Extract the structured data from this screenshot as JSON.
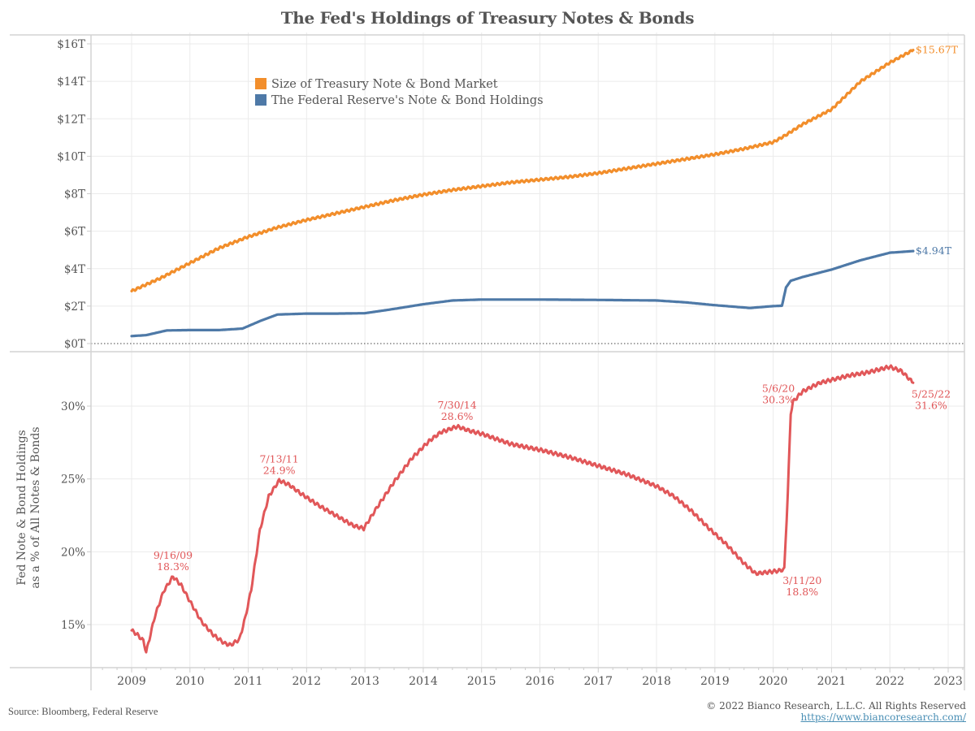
{
  "title": "The Fed's Holdings of Treasury Notes & Bonds",
  "footer": {
    "source": "Source: Bloomberg, Federal Reserve",
    "copyright": "© 2022 Bianco Research, L.L.C. All Rights Reserved",
    "url": "https://www.biancoresearch.com/"
  },
  "colors": {
    "market": "#f28e2b",
    "fed": "#4e79a7",
    "share": "#e15759",
    "text": "#555555",
    "grid": "#ebebeb"
  },
  "chart_data": [
    {
      "type": "line",
      "title": "Treasury Note & Bond Market vs Fed Holdings",
      "xlabel": "",
      "ylabel": "",
      "x_range": [
        2008.35,
        2023.3
      ],
      "ylim": [
        -0.4,
        17
      ],
      "y_ticks": [
        0,
        2,
        4,
        6,
        8,
        10,
        12,
        14,
        16
      ],
      "y_tick_labels": [
        "$0T",
        "$2T",
        "$4T",
        "$6T",
        "$8T",
        "$10T",
        "$12T",
        "$14T",
        "$16T"
      ],
      "grid": true,
      "legend_position": "top-left",
      "legend": [
        "Size of Treasury Note & Bond Market",
        "The Federal Reserve's Note & Bond Holdings"
      ],
      "series": [
        {
          "name": "Size of Treasury Note & Bond Market",
          "color_key": "market",
          "end_label": "$15.67T",
          "x": [
            2009.0,
            2009.5,
            2010.0,
            2010.5,
            2011.0,
            2011.5,
            2012.0,
            2012.5,
            2013.0,
            2013.5,
            2014.0,
            2014.5,
            2015.0,
            2015.5,
            2016.0,
            2016.5,
            2017.0,
            2017.5,
            2018.0,
            2018.5,
            2019.0,
            2019.5,
            2020.0,
            2020.2,
            2020.5,
            2021.0,
            2021.5,
            2022.0,
            2022.4
          ],
          "y": [
            2.8,
            3.5,
            4.3,
            5.1,
            5.7,
            6.2,
            6.6,
            6.95,
            7.3,
            7.65,
            7.95,
            8.2,
            8.4,
            8.6,
            8.75,
            8.9,
            9.1,
            9.35,
            9.6,
            9.85,
            10.1,
            10.4,
            10.75,
            11.1,
            11.7,
            12.5,
            14.0,
            15.0,
            15.67
          ]
        },
        {
          "name": "The Federal Reserve's Note & Bond Holdings",
          "color_key": "fed",
          "end_label": "$4.94T",
          "x": [
            2009.0,
            2009.25,
            2009.6,
            2010.0,
            2010.5,
            2010.9,
            2011.2,
            2011.5,
            2012.0,
            2012.5,
            2013.0,
            2013.5,
            2014.0,
            2014.5,
            2015.0,
            2016.0,
            2017.0,
            2018.0,
            2018.5,
            2019.0,
            2019.6,
            2020.0,
            2020.15,
            2020.22,
            2020.3,
            2020.5,
            2021.0,
            2021.5,
            2022.0,
            2022.4
          ],
          "y": [
            0.4,
            0.45,
            0.7,
            0.72,
            0.72,
            0.8,
            1.2,
            1.55,
            1.6,
            1.6,
            1.62,
            1.85,
            2.1,
            2.3,
            2.35,
            2.35,
            2.33,
            2.3,
            2.2,
            2.05,
            1.9,
            2.0,
            2.02,
            3.0,
            3.35,
            3.55,
            3.95,
            4.45,
            4.85,
            4.94
          ]
        }
      ]
    },
    {
      "type": "line",
      "title": "Fed share of notes & bonds",
      "xlabel": "",
      "ylabel": "Fed Note & Bond Holdings as a % of All Notes & Bonds",
      "x_range": [
        2008.35,
        2023.3
      ],
      "ylim": [
        12.2,
        33.9
      ],
      "y_ticks": [
        15,
        20,
        25,
        30
      ],
      "y_tick_labels": [
        "15%",
        "20%",
        "25%",
        "30%"
      ],
      "x_ticks": [
        2009,
        2010,
        2011,
        2012,
        2013,
        2014,
        2015,
        2016,
        2017,
        2018,
        2019,
        2020,
        2021,
        2022,
        2023
      ],
      "x_tick_labels": [
        "2009",
        "2010",
        "2011",
        "2012",
        "2013",
        "2014",
        "2015",
        "2016",
        "2017",
        "2018",
        "2019",
        "2020",
        "2021",
        "2022",
        "2023"
      ],
      "grid": true,
      "series": [
        {
          "name": "Fed Note & Bond Holdings as % of All Notes & Bonds",
          "color_key": "share",
          "x": [
            2009.0,
            2009.1,
            2009.2,
            2009.25,
            2009.4,
            2009.55,
            2009.71,
            2009.85,
            2010.0,
            2010.2,
            2010.4,
            2010.6,
            2010.7,
            2010.85,
            2010.95,
            2011.05,
            2011.2,
            2011.35,
            2011.53,
            2011.7,
            2011.9,
            2012.2,
            2012.5,
            2012.8,
            2012.98,
            2013.2,
            2013.5,
            2013.8,
            2014.1,
            2014.3,
            2014.58,
            2014.8,
            2015.0,
            2015.5,
            2016.0,
            2016.5,
            2017.0,
            2017.5,
            2018.0,
            2018.3,
            2018.6,
            2018.9,
            2019.2,
            2019.5,
            2019.7,
            2019.9,
            2020.1,
            2020.19,
            2020.25,
            2020.3,
            2020.34,
            2020.5,
            2020.8,
            2021.0,
            2021.3,
            2021.6,
            2021.9,
            2022.0,
            2022.2,
            2022.4
          ],
          "y": [
            14.6,
            14.3,
            13.9,
            13.1,
            15.6,
            17.3,
            18.3,
            17.7,
            16.6,
            15.2,
            14.3,
            13.7,
            13.6,
            14.0,
            15.5,
            17.4,
            21.5,
            23.8,
            24.9,
            24.6,
            24.0,
            23.2,
            22.5,
            21.8,
            21.6,
            23.0,
            24.8,
            26.4,
            27.6,
            28.2,
            28.6,
            28.3,
            28.1,
            27.4,
            27.0,
            26.5,
            25.9,
            25.3,
            24.5,
            23.8,
            22.8,
            21.6,
            20.5,
            19.2,
            18.5,
            18.6,
            18.7,
            18.8,
            24.0,
            29.5,
            30.3,
            31.0,
            31.6,
            31.8,
            32.1,
            32.3,
            32.6,
            32.7,
            32.4,
            31.6
          ]
        }
      ],
      "annotations": [
        {
          "date": "9/16/09",
          "value": "18.3%",
          "x": 2009.71,
          "y": 18.3,
          "position": "above"
        },
        {
          "date": "7/13/11",
          "value": "24.9%",
          "x": 2011.53,
          "y": 24.9,
          "position": "above"
        },
        {
          "date": "7/30/14",
          "value": "28.6%",
          "x": 2014.58,
          "y": 28.6,
          "position": "above"
        },
        {
          "date": "3/11/20",
          "value": "18.8%",
          "x": 2020.19,
          "y": 18.8,
          "position": "below-right"
        },
        {
          "date": "5/6/20",
          "value": "30.3%",
          "x": 2020.34,
          "y": 30.3,
          "position": "left"
        },
        {
          "date": "5/25/22",
          "value": "31.6%",
          "x": 2022.4,
          "y": 31.6,
          "position": "below-right"
        }
      ]
    }
  ]
}
